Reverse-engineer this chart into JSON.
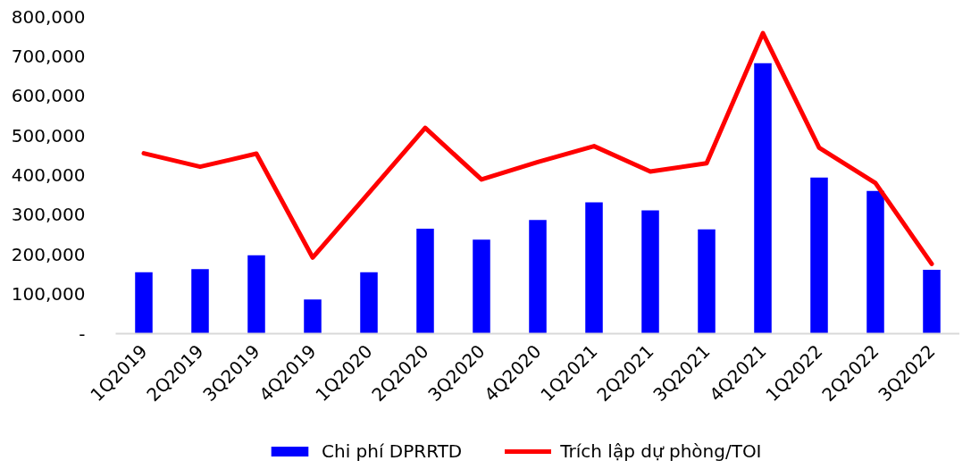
{
  "chart_data": {
    "type": "bar",
    "categories": [
      "1Q2019",
      "2Q2019",
      "3Q2019",
      "4Q2019",
      "1Q2020",
      "2Q2020",
      "3Q2020",
      "4Q2020",
      "1Q2021",
      "2Q2021",
      "3Q2021",
      "4Q2021",
      "1Q2022",
      "2Q2022",
      "3Q2022"
    ],
    "series": [
      {
        "name": "Chi phí DPRRTD",
        "color": "#0000ff",
        "values": [
          155000,
          163000,
          198000,
          86000,
          155000,
          265000,
          237000,
          287000,
          331000,
          311000,
          263000,
          682000,
          394000,
          360000,
          161000
        ]
      },
      {
        "name": "Trích lập dự phòng/TOI",
        "type": "line",
        "color": "#ff0000",
        "values": [
          455000,
          421000,
          454000,
          192000,
          355000,
          519000,
          389000,
          433000,
          473000,
          409000,
          430000,
          758000,
          469000,
          380000,
          176000
        ]
      }
    ],
    "ylim": [
      0,
      800000
    ],
    "yticks": [
      {
        "value": 0,
        "label": "-"
      },
      {
        "value": 100000,
        "label": "100,000"
      },
      {
        "value": 200000,
        "label": "200,000"
      },
      {
        "value": 300000,
        "label": "300,000"
      },
      {
        "value": 400000,
        "label": "400,000"
      },
      {
        "value": 500000,
        "label": "500,000"
      },
      {
        "value": 600000,
        "label": "600,000"
      },
      {
        "value": 700000,
        "label": "700,000"
      },
      {
        "value": 800000,
        "label": "800,000"
      }
    ],
    "grid": false,
    "legend": "bottom"
  }
}
